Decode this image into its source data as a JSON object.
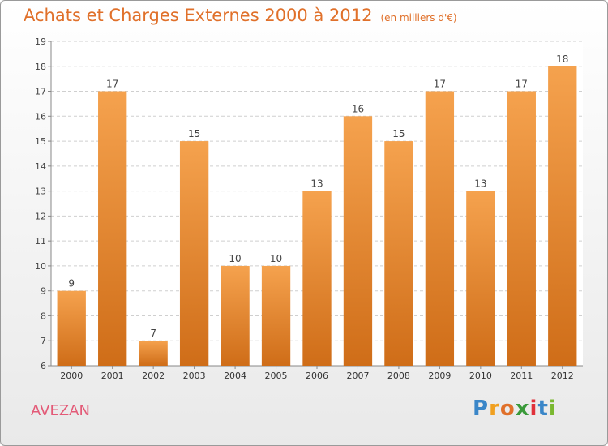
{
  "header": {
    "title": "Achats et Charges Externes 2000 à 2012",
    "subtitle": "(en milliers d'€)"
  },
  "footer": {
    "town": "AVEZAN",
    "logo": "Proxiti"
  },
  "colors": {
    "bar_light": "#f5a24e",
    "bar_dark": "#cf6d18",
    "title": "#e0702a",
    "town": "#e35a77"
  },
  "chart_data": {
    "type": "bar",
    "title": "Achats et Charges Externes 2000 à 2012",
    "subtitle": "(en milliers d'€)",
    "categories": [
      "2000",
      "2001",
      "2002",
      "2003",
      "2004",
      "2005",
      "2006",
      "2007",
      "2008",
      "2009",
      "2010",
      "2011",
      "2012"
    ],
    "values": [
      9,
      17,
      7,
      15,
      10,
      10,
      13,
      16,
      15,
      17,
      13,
      17,
      18
    ],
    "ylim": [
      6,
      19
    ],
    "yticks": [
      6,
      7,
      8,
      9,
      10,
      11,
      12,
      13,
      14,
      15,
      16,
      17,
      18,
      19
    ],
    "grid": true,
    "legend": "none"
  }
}
